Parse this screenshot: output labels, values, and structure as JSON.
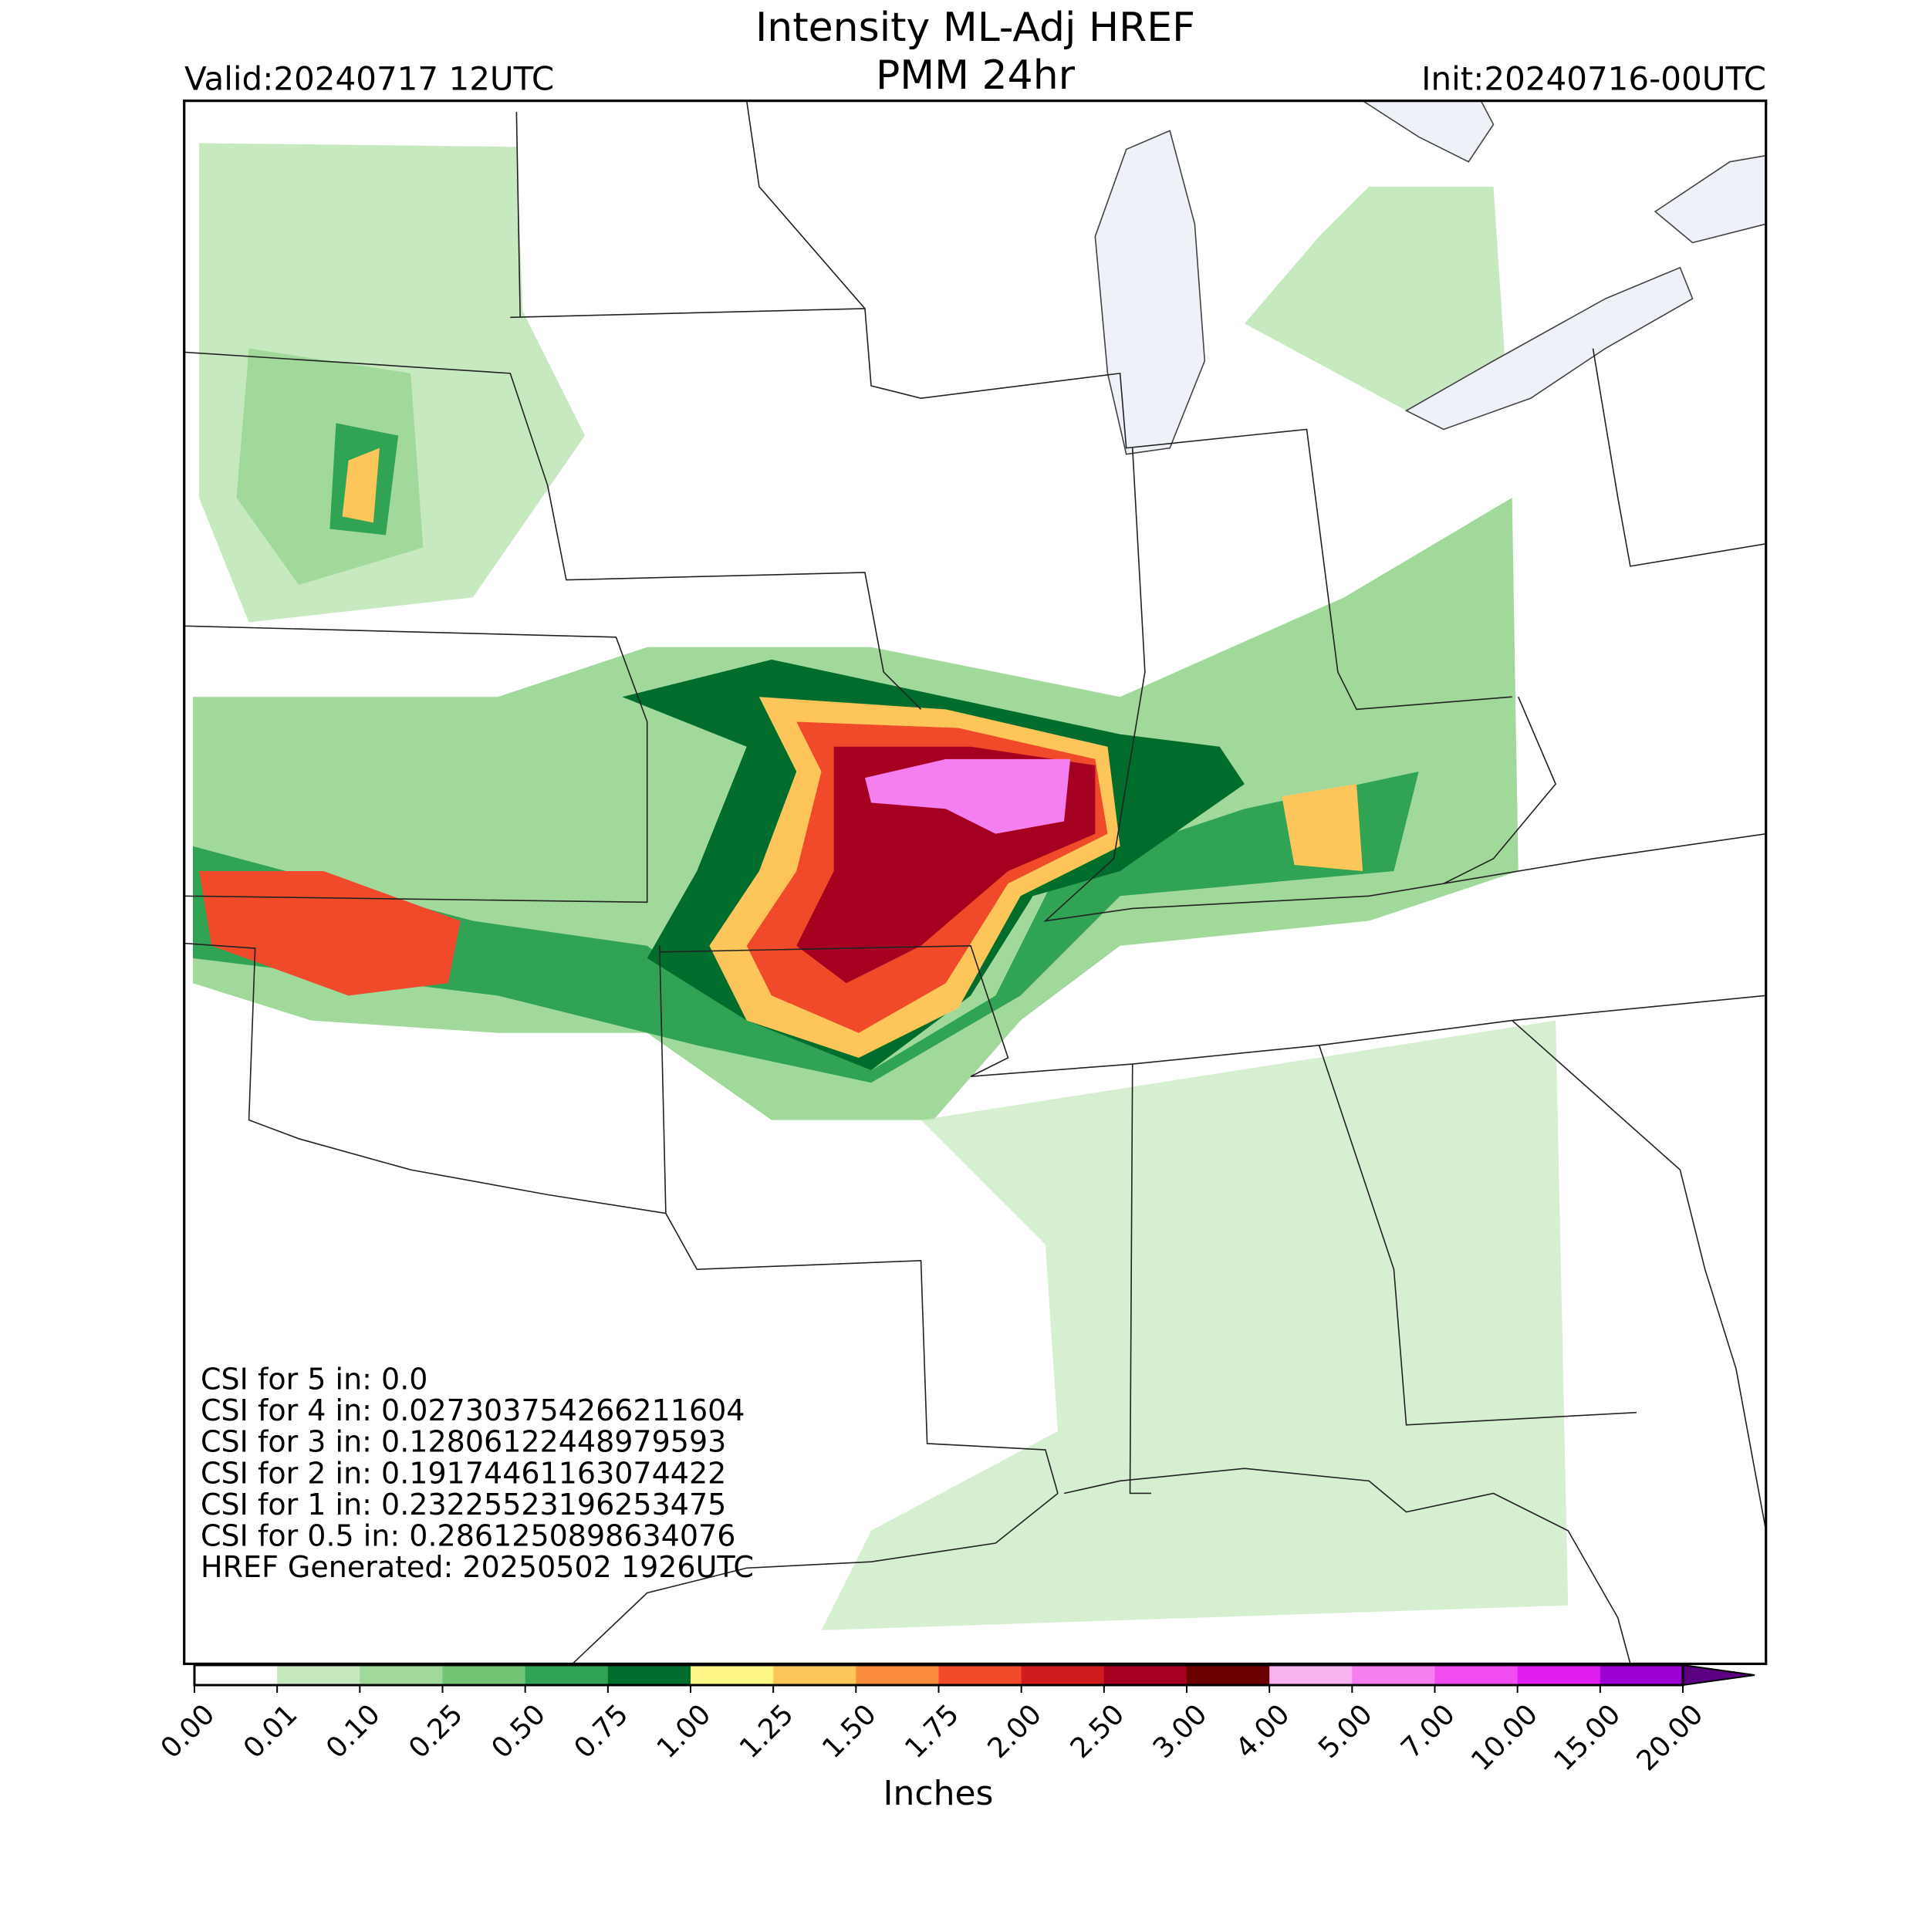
{
  "header": {
    "title": [
      "Intensity ML-Adj HREF",
      "PMM 24hr"
    ],
    "valid": "Valid:20240717 12UTC",
    "init": "Init:20240716-00UTC"
  },
  "annotations": [
    "CSI for 5 in: 0.0",
    "CSI for 4 in: 0.027303754266211604",
    "CSI for 3 in: 0.12806122448979593",
    "CSI for 2 in: 0.19174461163074422",
    "CSI for 1 in: 0.23225523196253475",
    "CSI for 0.5 in: 0.2861250898634076",
    "HREF Generated: 20250502 1926UTC"
  ],
  "colorbar": {
    "label": "Inches",
    "ticks": [
      {
        "value": 0,
        "label": "0.00"
      },
      {
        "value": 0.01,
        "label": "0.01"
      },
      {
        "value": 0.1,
        "label": "0.10"
      },
      {
        "value": 0.25,
        "label": "0.25"
      },
      {
        "value": 0.5,
        "label": "0.50"
      },
      {
        "value": 0.75,
        "label": "0.75"
      },
      {
        "value": 1,
        "label": "1.00"
      },
      {
        "value": 1.25,
        "label": "1.25"
      },
      {
        "value": 1.5,
        "label": "1.50"
      },
      {
        "value": 1.75,
        "label": "1.75"
      },
      {
        "value": 2,
        "label": "2.00"
      },
      {
        "value": 2.5,
        "label": "2.50"
      },
      {
        "value": 3,
        "label": "3.00"
      },
      {
        "value": 4,
        "label": "4.00"
      },
      {
        "value": 5,
        "label": "5.00"
      },
      {
        "value": 7,
        "label": "7.00"
      },
      {
        "value": 10,
        "label": "10.00"
      },
      {
        "value": 15,
        "label": "15.00"
      },
      {
        "value": 20,
        "label": "20.00"
      }
    ],
    "colors": [
      "#ffffff",
      "#c7e9c0",
      "#a1d99b",
      "#74c476",
      "#31a354",
      "#006d2c",
      "#fff685",
      "#fdc55a",
      "#fb8c3c",
      "#f04a2a",
      "#d01c1e",
      "#a5001f",
      "#6b0000",
      "#f7b2ef",
      "#f57ef0",
      "#f04cf0",
      "#e01ef0",
      "#9c00d2"
    ],
    "over_color": "#5a0080"
  }
}
